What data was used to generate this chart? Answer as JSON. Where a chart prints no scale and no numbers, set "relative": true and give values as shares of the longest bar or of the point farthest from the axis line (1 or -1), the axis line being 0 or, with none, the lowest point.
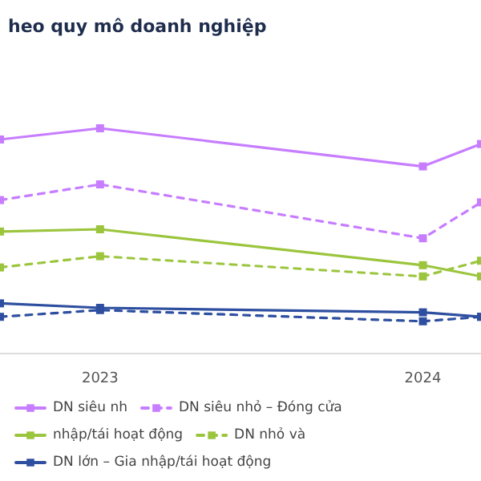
{
  "chart_data": {
    "type": "line",
    "title": "heo quy mô doanh nghiệp",
    "relative": true,
    "marker": "square",
    "grid": false,
    "legend": "bottom",
    "xlim": [
      2022.69,
      2024.18
    ],
    "xticks": [
      2023,
      2024
    ],
    "series": [
      {
        "name": "DN siêu nh",
        "color": "#c77dff",
        "line_style": "solid",
        "x": [
          2022.69,
          2023,
          2024,
          2024.18
        ],
        "values": [
          0.95,
          1,
          0.83,
          0.93
        ]
      },
      {
        "name": "DN siêu nhỏ – Đóng cửa",
        "color": "#c77dff",
        "line_style": "dashed",
        "x": [
          2022.69,
          2023,
          2024,
          2024.18
        ],
        "values": [
          0.68,
          0.75,
          0.51,
          0.67
        ]
      },
      {
        "name": "nhập/tái hoạt động",
        "color": "#9bc53d",
        "line_style": "solid",
        "x": [
          2022.69,
          2023,
          2024,
          2024.18
        ],
        "values": [
          0.54,
          0.55,
          0.39,
          0.34
        ]
      },
      {
        "name": "DN nhỏ và",
        "color": "#9bc53d",
        "line_style": "dashed",
        "x": [
          2022.69,
          2023,
          2024,
          2024.18
        ],
        "values": [
          0.38,
          0.43,
          0.34,
          0.41
        ]
      },
      {
        "name": "DN lớn – Gia nhập/tái hoạt động",
        "color": "#2e4fa0",
        "line_style": "solid",
        "x": [
          2022.69,
          2023,
          2024,
          2024.18
        ],
        "values": [
          0.22,
          0.2,
          0.18,
          0.16
        ]
      },
      {
        "color": "#2e4fa0",
        "line_style": "dashed",
        "x": [
          2022.69,
          2023,
          2024,
          2024.18
        ],
        "values": [
          0.16,
          0.19,
          0.14,
          0.16
        ]
      }
    ]
  }
}
